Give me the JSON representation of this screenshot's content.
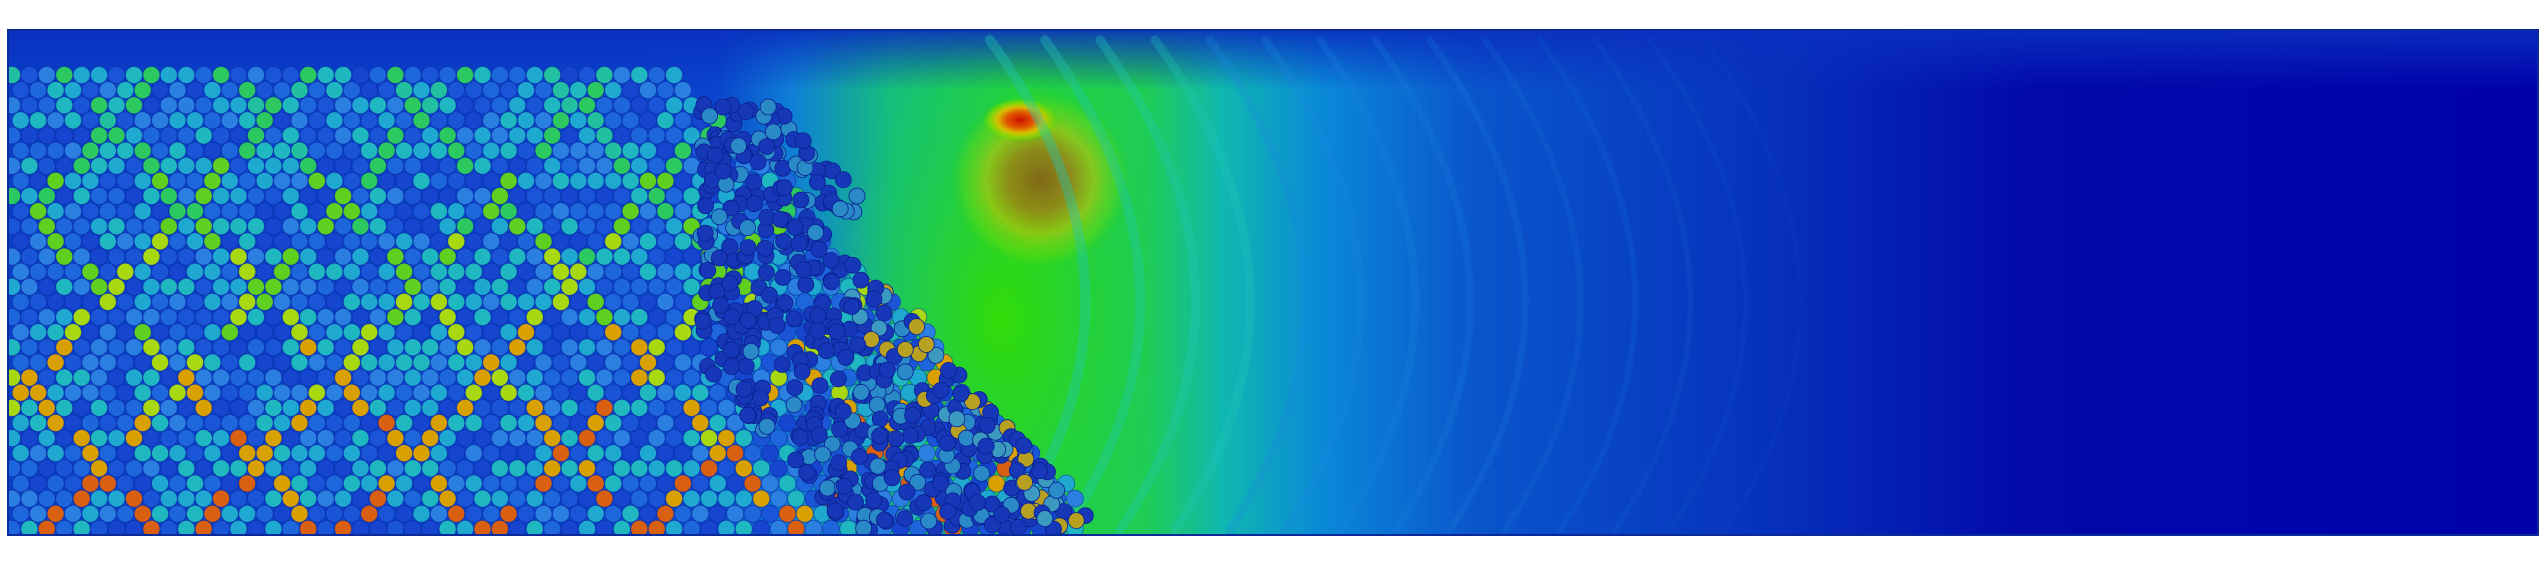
{
  "scene": {
    "description_visible_text": "",
    "colormap": {
      "name": "jet-like",
      "stops": [
        "#0000aa",
        "#0033cc",
        "#0077dd",
        "#00aacc",
        "#00cc66",
        "#33dd00",
        "#aadd00",
        "#ddaa00",
        "#dd3300",
        "#aa0000"
      ]
    },
    "background": "#ffffff",
    "field_colors": {
      "deep_blue": "#0000aa",
      "mid_blue": "#0044cc",
      "cyan": "#00aacc",
      "green": "#00cc33",
      "yellow_green": "#99dd00",
      "red": "#cc1100"
    }
  }
}
